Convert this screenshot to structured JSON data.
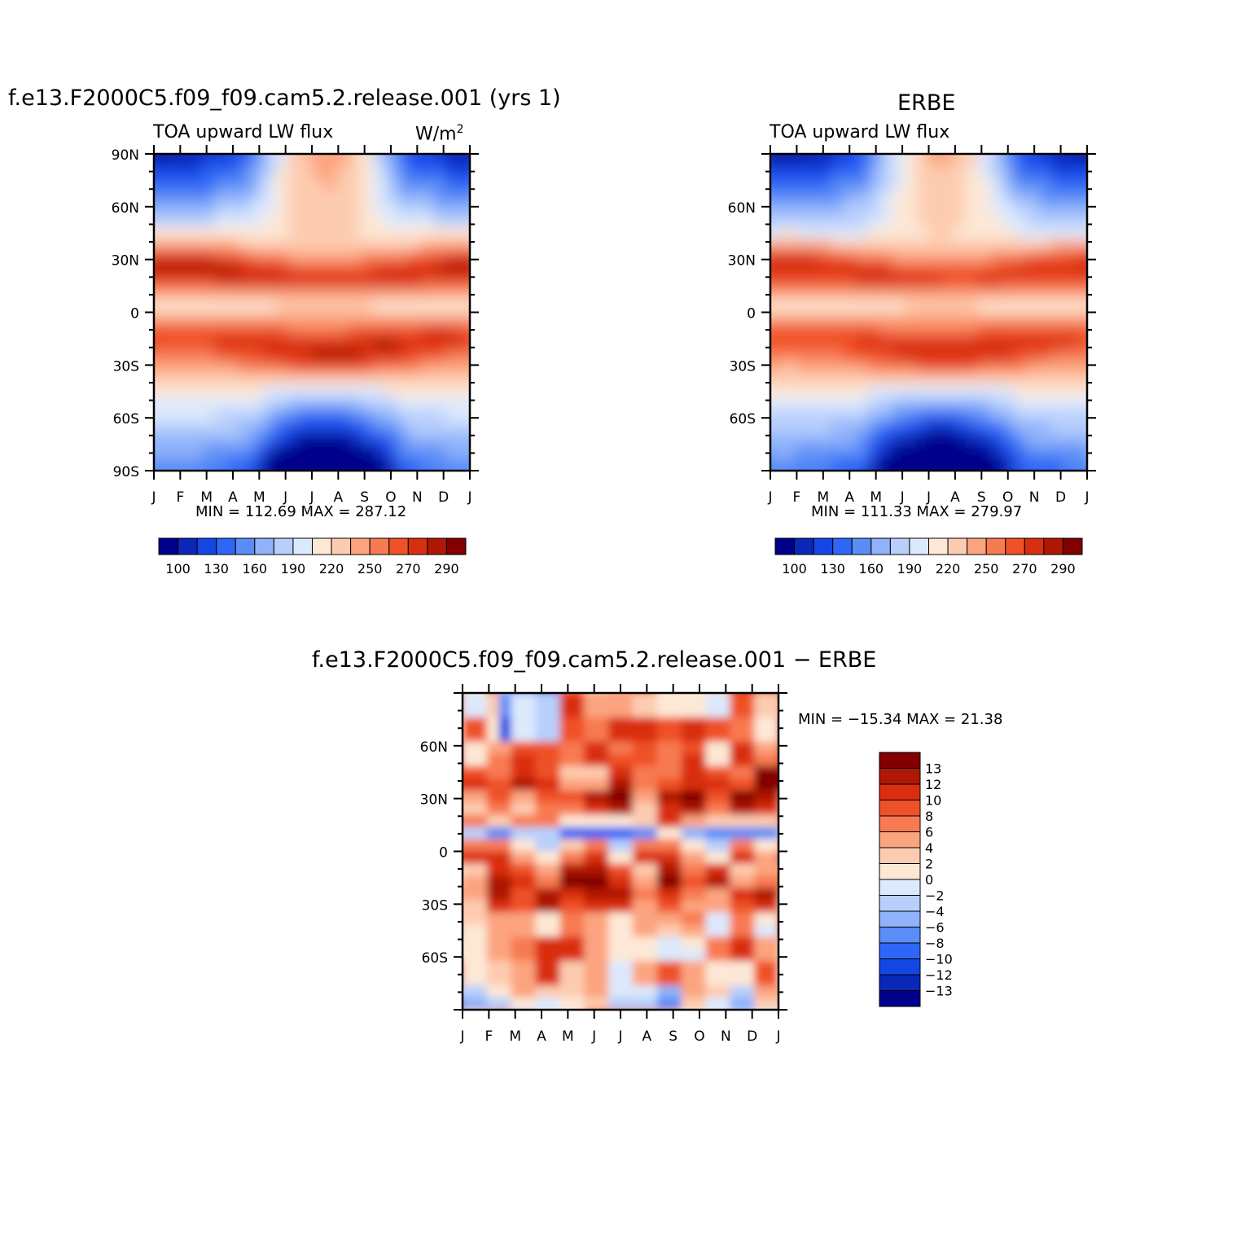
{
  "panels": [
    {
      "id": "model",
      "title": "f.e13.F2000C5.f09_f09.cam5.2.release.001 (yrs 1)",
      "left_label": "TOA upward LW flux",
      "right_label_main": "W/m",
      "right_label_sup": "2",
      "minmax": "MIN = 112.69 MAX = 287.12"
    },
    {
      "id": "obs",
      "title": "ERBE",
      "left_label": "TOA upward LW flux",
      "minmax": "MIN = 111.33 MAX = 279.97"
    },
    {
      "id": "diff",
      "title": "f.e13.F2000C5.f09_f09.cam5.2.release.001 − ERBE",
      "minmax": "MIN = −15.34 MAX =  21.38"
    }
  ],
  "chart_data": [
    {
      "type": "heatmap",
      "title": "f.e13.F2000C5.f09_f09.cam5.2.release.001 (yrs 1)",
      "subtitle": "TOA upward LW flux",
      "units": "W/m2",
      "x_ticklabels": [
        "J",
        "F",
        "M",
        "A",
        "M",
        "J",
        "J",
        "A",
        "S",
        "O",
        "N",
        "D",
        "J"
      ],
      "y_ticklabels": [
        "90N",
        "60N",
        "30N",
        "0",
        "30S",
        "60S",
        "90S"
      ],
      "ylim": [
        -90,
        90
      ],
      "colorbar_labels": [
        "100",
        "130",
        "160",
        "190",
        "220",
        "250",
        "270",
        "290"
      ],
      "colorbar_colors": [
        "#00008a",
        "#0a27b8",
        "#1446e6",
        "#2f66f5",
        "#5a8df7",
        "#8fb2fa",
        "#b8cffc",
        "#dce9fd",
        "#fde8d6",
        "#fdccb0",
        "#fca47f",
        "#f87a51",
        "#ef5128",
        "#d92e0f",
        "#ae1805",
        "#820000"
      ],
      "min": 112.69,
      "max": 287.12
    },
    {
      "type": "heatmap",
      "title": "ERBE",
      "subtitle": "TOA upward LW flux",
      "x_ticklabels": [
        "J",
        "F",
        "M",
        "A",
        "M",
        "J",
        "J",
        "A",
        "S",
        "O",
        "N",
        "D",
        "J"
      ],
      "y_ticklabels": [
        "60N",
        "30N",
        "0",
        "30S",
        "60S"
      ],
      "colorbar_labels": [
        "100",
        "130",
        "160",
        "190",
        "220",
        "250",
        "270",
        "290"
      ],
      "colorbar_colors": [
        "#00008a",
        "#0a27b8",
        "#1446e6",
        "#2f66f5",
        "#5a8df7",
        "#8fb2fa",
        "#b8cffc",
        "#dce9fd",
        "#fde8d6",
        "#fdccb0",
        "#fca47f",
        "#f87a51",
        "#ef5128",
        "#d92e0f",
        "#ae1805",
        "#820000"
      ],
      "min": 111.33,
      "max": 279.97
    },
    {
      "type": "heatmap",
      "title": "f.e13.F2000C5.f09_f09.cam5.2.release.001 − ERBE",
      "x_ticklabels": [
        "J",
        "F",
        "M",
        "A",
        "M",
        "J",
        "J",
        "A",
        "S",
        "O",
        "N",
        "D",
        "J"
      ],
      "y_ticklabels": [
        "60N",
        "30N",
        "0",
        "30S",
        "60S"
      ],
      "colorbar_labels": [
        "13",
        "12",
        "10",
        "8",
        "6",
        "4",
        "2",
        "0",
        "−2",
        "−4",
        "−6",
        "−8",
        "−10",
        "−12",
        "−13"
      ],
      "colorbar_colors": [
        "#820000",
        "#ae1805",
        "#d92e0f",
        "#ef5128",
        "#f87a51",
        "#fca47f",
        "#fdccb0",
        "#fde8d6",
        "#dce9fd",
        "#b8cffc",
        "#8fb2fa",
        "#5a8df7",
        "#2f66f5",
        "#1446e6",
        "#0a27b8",
        "#00008a"
      ],
      "min": -15.34,
      "max": 21.38
    }
  ]
}
